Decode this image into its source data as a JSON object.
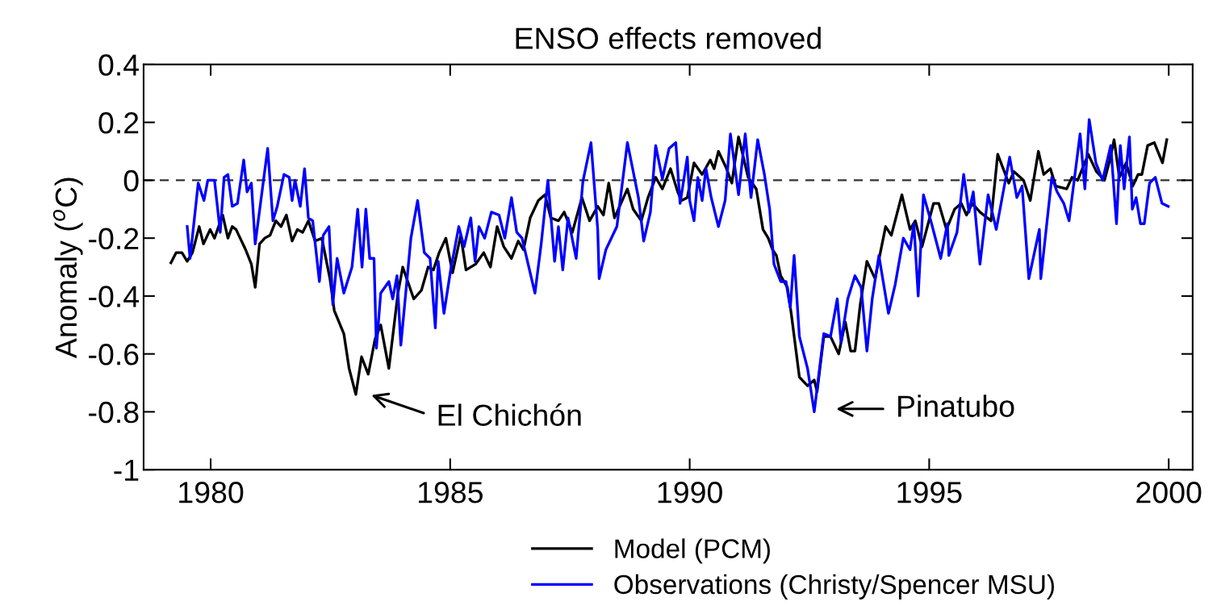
{
  "chart_data": {
    "type": "line",
    "title": "ENSO effects removed",
    "ylabel": "Anomaly ($^{o}$C)",
    "xlim": [
      1978.6,
      2000.5
    ],
    "xticks": [
      1980,
      1985,
      1990,
      1995,
      2000
    ],
    "ylim": [
      -1,
      0.4
    ],
    "yticks": [
      -1,
      -0.8,
      -0.6,
      -0.4,
      -0.2,
      0,
      0.2,
      0.4
    ],
    "grid": false,
    "legend": "bottom",
    "line_style": "solid",
    "ref_lines": [
      {
        "axis": "y",
        "value": 0,
        "color": "#333333",
        "line_style": "dashed"
      }
    ],
    "annotations": [
      "El Chichón",
      "Pinatubo"
    ],
    "series": [
      {
        "name": "Model (PCM)",
        "color": "#000000",
        "x": [
          1979.17,
          1979.28,
          1979.4,
          1979.51,
          1979.62,
          1979.76,
          1979.85,
          1979.99,
          1980.08,
          1980.25,
          1980.36,
          1980.45,
          1980.53,
          1980.73,
          1980.85,
          1980.93,
          1981.02,
          1981.13,
          1981.24,
          1981.36,
          1981.47,
          1981.58,
          1981.7,
          1981.81,
          1981.92,
          1982.04,
          1982.18,
          1982.32,
          1982.49,
          1982.58,
          1982.78,
          1982.89,
          1983.03,
          1983.15,
          1983.29,
          1983.43,
          1983.55,
          1983.72,
          1983.91,
          1984.01,
          1984.24,
          1984.4,
          1984.54,
          1984.65,
          1984.77,
          1984.91,
          1985.05,
          1985.22,
          1985.33,
          1985.53,
          1985.7,
          1985.84,
          1985.98,
          1986.12,
          1986.28,
          1986.42,
          1986.53,
          1986.67,
          1986.84,
          1986.98,
          1987.1,
          1987.26,
          1987.38,
          1987.55,
          1987.75,
          1987.91,
          1988.08,
          1988.2,
          1988.31,
          1988.43,
          1988.7,
          1988.82,
          1988.99,
          1989.13,
          1989.29,
          1989.43,
          1989.6,
          1989.75,
          1989.83,
          1989.95,
          1990.09,
          1990.26,
          1990.43,
          1990.51,
          1990.6,
          1990.77,
          1990.88,
          1991.02,
          1991.22,
          1991.39,
          1991.53,
          1991.64,
          1991.73,
          1991.81,
          1991.9,
          1992.04,
          1992.12,
          1992.29,
          1992.46,
          1992.6,
          1992.66,
          1992.8,
          1992.94,
          1993.11,
          1993.25,
          1993.36,
          1993.45,
          1993.56,
          1993.7,
          1993.87,
          1994.09,
          1994.21,
          1994.43,
          1994.6,
          1994.71,
          1994.85,
          1995.09,
          1995.2,
          1995.36,
          1995.53,
          1995.67,
          1995.78,
          1995.9,
          1996.06,
          1996.29,
          1996.43,
          1996.66,
          1996.77,
          1996.97,
          1997.11,
          1997.28,
          1997.39,
          1997.53,
          1997.64,
          1997.87,
          1997.98,
          1998.1,
          1998.32,
          1998.49,
          1998.66,
          1998.77,
          1998.86,
          1998.97,
          1999.11,
          1999.25,
          1999.36,
          1999.44,
          1999.56,
          1999.7,
          1999.87,
          1999.96
        ],
        "values": [
          -0.285,
          -0.25,
          -0.25,
          -0.28,
          -0.25,
          -0.16,
          -0.22,
          -0.17,
          -0.2,
          -0.12,
          -0.2,
          -0.16,
          -0.17,
          -0.24,
          -0.29,
          -0.37,
          -0.22,
          -0.2,
          -0.19,
          -0.14,
          -0.16,
          -0.12,
          -0.21,
          -0.17,
          -0.18,
          -0.14,
          -0.21,
          -0.2,
          -0.34,
          -0.45,
          -0.53,
          -0.65,
          -0.74,
          -0.61,
          -0.67,
          -0.55,
          -0.5,
          -0.65,
          -0.39,
          -0.3,
          -0.41,
          -0.38,
          -0.3,
          -0.31,
          -0.25,
          -0.2,
          -0.32,
          -0.19,
          -0.31,
          -0.29,
          -0.25,
          -0.3,
          -0.16,
          -0.23,
          -0.27,
          -0.21,
          -0.24,
          -0.13,
          -0.07,
          -0.05,
          -0.13,
          -0.14,
          -0.11,
          -0.18,
          -0.06,
          -0.14,
          -0.09,
          -0.12,
          -0.01,
          -0.13,
          -0.03,
          -0.1,
          -0.14,
          -0.06,
          0.01,
          -0.03,
          0.04,
          -0.04,
          -0.07,
          -0.06,
          0.06,
          0.02,
          0.07,
          0.04,
          0.1,
          0.04,
          -0.01,
          0.15,
          0.01,
          -0.03,
          -0.17,
          -0.2,
          -0.24,
          -0.26,
          -0.33,
          -0.37,
          -0.46,
          -0.68,
          -0.71,
          -0.69,
          -0.73,
          -0.54,
          -0.54,
          -0.6,
          -0.49,
          -0.59,
          -0.59,
          -0.43,
          -0.28,
          -0.34,
          -0.16,
          -0.19,
          -0.05,
          -0.17,
          -0.14,
          -0.23,
          -0.08,
          -0.08,
          -0.17,
          -0.1,
          -0.08,
          -0.12,
          -0.08,
          -0.11,
          -0.14,
          0.09,
          -0.01,
          0.03,
          0.0,
          -0.07,
          0.1,
          0.02,
          0.04,
          -0.02,
          -0.03,
          0.01,
          0.0,
          0.09,
          0.03,
          0.0,
          0.07,
          0.14,
          0.01,
          0.06,
          -0.02,
          0.02,
          0.02,
          0.12,
          0.13,
          0.06,
          0.14
        ]
      },
      {
        "name": "Observations (Christy/Spencer MSU)",
        "color": "#0000ff",
        "x": [
          1979.51,
          1979.57,
          1979.74,
          1979.86,
          1979.94,
          1980.08,
          1980.2,
          1980.28,
          1980.36,
          1980.45,
          1980.56,
          1980.69,
          1980.76,
          1980.85,
          1980.93,
          1981.19,
          1981.3,
          1981.39,
          1981.53,
          1981.64,
          1981.7,
          1981.76,
          1981.87,
          1981.96,
          1982.04,
          1982.13,
          1982.27,
          1982.35,
          1982.47,
          1982.55,
          1982.64,
          1982.78,
          1982.95,
          1983.07,
          1983.16,
          1983.24,
          1983.32,
          1983.41,
          1983.46,
          1983.55,
          1983.72,
          1983.8,
          1983.89,
          1983.97,
          1984.18,
          1984.32,
          1984.46,
          1984.58,
          1984.69,
          1984.75,
          1984.87,
          1985.01,
          1985.18,
          1985.29,
          1985.43,
          1985.52,
          1985.6,
          1985.72,
          1985.86,
          1986.02,
          1986.14,
          1986.28,
          1986.39,
          1986.5,
          1986.77,
          1986.9,
          1987.04,
          1987.18,
          1987.26,
          1987.35,
          1987.46,
          1987.63,
          1987.77,
          1987.94,
          1988.08,
          1988.11,
          1988.25,
          1988.48,
          1988.7,
          1988.93,
          1989.04,
          1989.18,
          1989.29,
          1989.43,
          1989.57,
          1989.71,
          1989.8,
          1989.95,
          1990.0,
          1990.09,
          1990.17,
          1990.26,
          1990.34,
          1990.45,
          1990.6,
          1990.74,
          1990.85,
          1991.02,
          1991.16,
          1991.28,
          1991.42,
          1991.56,
          1991.67,
          1991.76,
          1991.9,
          1992.01,
          1992.1,
          1992.18,
          1992.29,
          1992.46,
          1992.6,
          1992.8,
          1992.94,
          1993.08,
          1993.16,
          1993.3,
          1993.45,
          1993.58,
          1993.7,
          1993.81,
          1993.95,
          1994.15,
          1994.29,
          1994.46,
          1994.6,
          1994.68,
          1994.77,
          1994.88,
          1995.05,
          1995.24,
          1995.38,
          1995.41,
          1995.58,
          1995.72,
          1995.83,
          1995.92,
          1996.06,
          1996.23,
          1996.4,
          1996.68,
          1996.83,
          1996.94,
          1997.08,
          1997.3,
          1997.33,
          1997.56,
          1997.67,
          1997.81,
          1997.92,
          1998.15,
          1998.25,
          1998.34,
          1998.48,
          1998.62,
          1998.79,
          1998.91,
          1998.99,
          1999.07,
          1999.18,
          1999.24,
          1999.32,
          1999.41,
          1999.49,
          1999.6,
          1999.72,
          1999.86,
          1999.99
        ],
        "values": [
          -0.16,
          -0.27,
          -0.01,
          -0.07,
          0.0,
          0.0,
          -0.18,
          0.01,
          0.02,
          -0.09,
          -0.08,
          0.07,
          -0.04,
          -0.01,
          -0.22,
          0.11,
          -0.14,
          -0.09,
          0.02,
          0.01,
          -0.07,
          0.0,
          -0.09,
          0.04,
          -0.13,
          -0.14,
          -0.35,
          -0.19,
          -0.16,
          -0.43,
          -0.27,
          -0.39,
          -0.3,
          -0.1,
          -0.3,
          -0.1,
          -0.27,
          -0.27,
          -0.58,
          -0.39,
          -0.35,
          -0.41,
          -0.33,
          -0.57,
          -0.2,
          -0.07,
          -0.25,
          -0.27,
          -0.51,
          -0.28,
          -0.46,
          -0.31,
          -0.16,
          -0.23,
          -0.13,
          -0.28,
          -0.16,
          -0.2,
          -0.11,
          -0.12,
          -0.2,
          -0.06,
          -0.18,
          -0.2,
          -0.39,
          -0.22,
          0.0,
          -0.28,
          -0.16,
          -0.31,
          -0.13,
          -0.27,
          -0.005,
          0.13,
          -0.17,
          -0.34,
          -0.24,
          -0.16,
          0.13,
          -0.06,
          -0.21,
          -0.11,
          0.12,
          0.005,
          0.11,
          0.13,
          -0.08,
          0.08,
          -0.07,
          -0.14,
          0.01,
          -0.07,
          0.04,
          -0.06,
          -0.16,
          -0.07,
          0.16,
          -0.05,
          0.16,
          -0.06,
          0.14,
          0.02,
          -0.1,
          -0.29,
          -0.35,
          -0.35,
          -0.44,
          -0.26,
          -0.54,
          -0.65,
          -0.8,
          -0.53,
          -0.54,
          -0.41,
          -0.56,
          -0.41,
          -0.33,
          -0.37,
          -0.59,
          -0.41,
          -0.26,
          -0.46,
          -0.36,
          -0.2,
          -0.24,
          -0.15,
          -0.4,
          -0.05,
          -0.15,
          -0.27,
          -0.15,
          -0.26,
          -0.18,
          0.02,
          -0.11,
          -0.04,
          -0.29,
          -0.05,
          -0.17,
          0.08,
          -0.06,
          -0.02,
          -0.34,
          -0.17,
          -0.34,
          0.01,
          -0.04,
          -0.08,
          -0.14,
          0.16,
          -0.03,
          0.21,
          0.06,
          0.0,
          0.12,
          -0.15,
          0.12,
          -0.03,
          0.15,
          -0.1,
          -0.06,
          -0.15,
          -0.15,
          -0.01,
          0.01,
          -0.08,
          -0.09
        ]
      }
    ]
  }
}
